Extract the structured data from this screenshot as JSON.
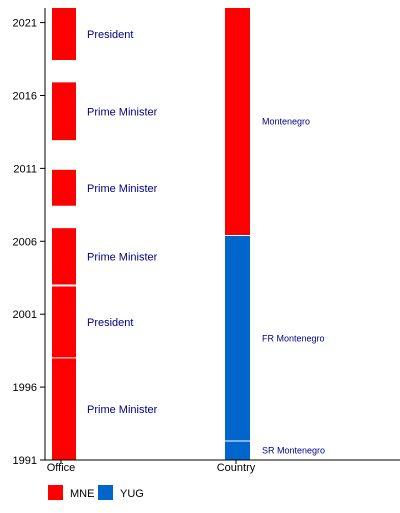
{
  "chart_data": {
    "type": "timeline",
    "y_ticks": [
      "2021",
      "2016",
      "2011",
      "2006",
      "2001",
      "1996",
      "1991"
    ],
    "categories": [
      "Office",
      "Country"
    ],
    "colors": {
      "MNE": "#ff0000",
      "YUG": "#0066cc"
    },
    "office_spans": [
      {
        "label": "Prime Minister",
        "start": 1991.0,
        "end": 1998.0,
        "code": "MNE"
      },
      {
        "label": "President",
        "start": 1998.0,
        "end": 2002.9,
        "code": "MNE"
      },
      {
        "label": "Prime Minister",
        "start": 2003.0,
        "end": 2006.9,
        "code": "MNE"
      },
      {
        "label": "Prime Minister",
        "start": 2008.4,
        "end": 2010.9,
        "code": "MNE"
      },
      {
        "label": "Prime Minister",
        "start": 2012.9,
        "end": 2016.9,
        "code": "MNE"
      },
      {
        "label": "President",
        "start": 2018.4,
        "end": 2022.0,
        "code": "MNE"
      }
    ],
    "country_spans": [
      {
        "label": "SR Montenegro",
        "start": 1991.0,
        "end": 1992.3,
        "code": "YUG"
      },
      {
        "label": "FR Montenegro",
        "start": 1992.3,
        "end": 2006.4,
        "code": "YUG"
      },
      {
        "label": "Montenegro",
        "start": 2006.4,
        "end": 2022.0,
        "code": "MNE"
      }
    ],
    "legend": [
      {
        "code": "MNE",
        "label": "MNE"
      },
      {
        "code": "YUG",
        "label": "YUG"
      }
    ]
  }
}
